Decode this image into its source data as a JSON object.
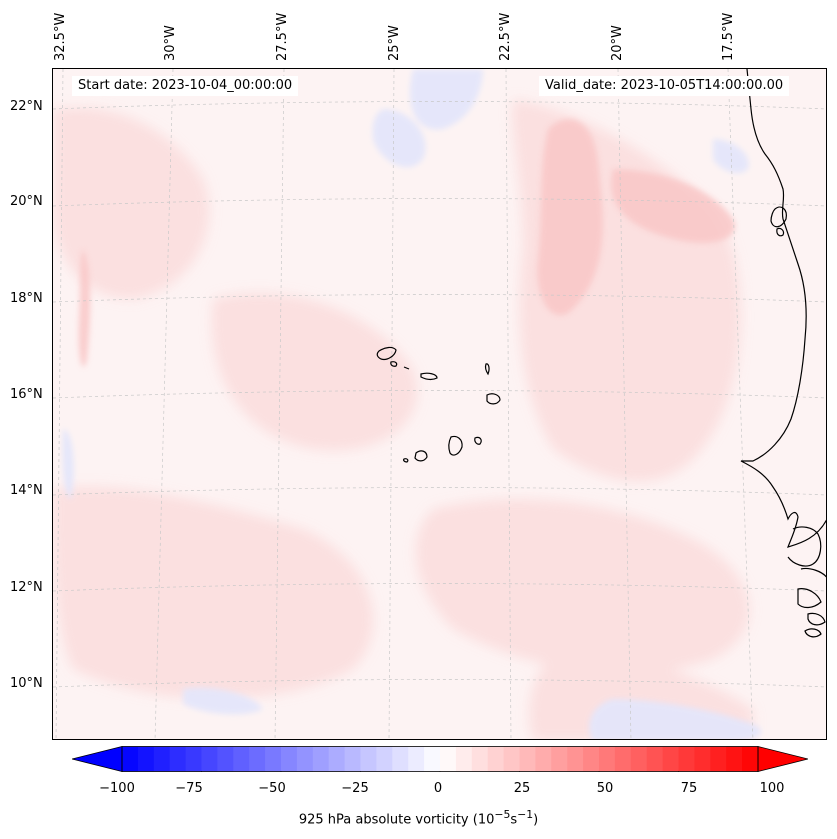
{
  "map": {
    "start_date": "Start date: 2023-10-04_00:00:00",
    "valid_date": "Valid_date: 2023-10-05T14:00:00.00",
    "lon_labels": [
      "32.5°W",
      "30°W",
      "27.5°W",
      "25°W",
      "22.5°W",
      "20°W",
      "17.5°W"
    ],
    "lat_labels": [
      "22°N",
      "20°N",
      "18°N",
      "16°N",
      "14°N",
      "12°N",
      "10°N"
    ],
    "field": "925 hPa absolute vorticity",
    "colormap": "bwr",
    "colors": {
      "negative": "#0000ff",
      "neutral": "#ffffff",
      "positive": "#ff0000",
      "coast": "#000000"
    }
  },
  "colorbar": {
    "label": "925 hPa absolute vorticity (10",
    "label_exp": "−5",
    "label_unit": "s",
    "label_exp2": "−1",
    "label_end": ")",
    "ticks": [
      "−100",
      "−75",
      "−50",
      "−25",
      "0",
      "25",
      "50",
      "75",
      "100"
    ],
    "min": -100,
    "max": 100,
    "extend": "both"
  }
}
